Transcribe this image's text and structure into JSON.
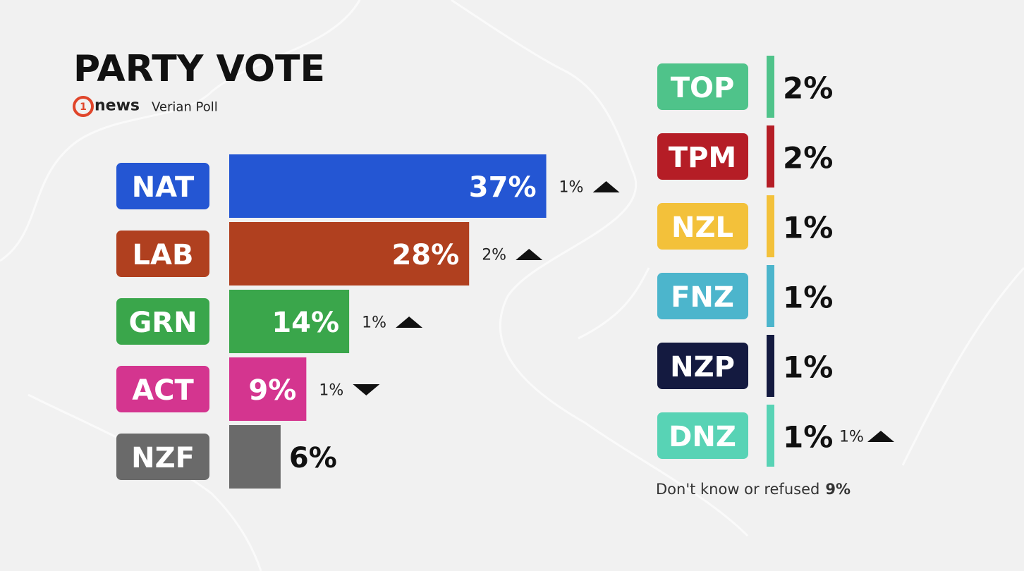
{
  "chart_data": [
    {
      "type": "bar",
      "orientation": "horizontal",
      "title": "PARTY VOTE",
      "logo_number": "1",
      "logo_text": "news",
      "subtitle": "Verian Poll",
      "categories": [
        "NAT",
        "LAB",
        "GRN",
        "ACT",
        "NZF"
      ],
      "values": [
        37,
        28,
        14,
        9,
        6
      ],
      "value_labels": [
        "37%",
        "28%",
        "14%",
        "9%",
        "6%"
      ],
      "colors": [
        "#2456d3",
        "#b0401f",
        "#3aa64b",
        "#d4358f",
        "#6a6a6a"
      ],
      "change": {
        "values": [
          1,
          2,
          1,
          1,
          null
        ],
        "value_labels": [
          "1%",
          "2%",
          "1%",
          "1%",
          null
        ],
        "direction": [
          "up",
          "up",
          "up",
          "down",
          null
        ]
      }
    },
    {
      "type": "list",
      "categories": [
        "TOP",
        "TPM",
        "NZL",
        "FNZ",
        "NZP",
        "DNZ"
      ],
      "values": [
        2,
        2,
        1,
        1,
        1,
        1
      ],
      "value_labels": [
        "2%",
        "2%",
        "1%",
        "1%",
        "1%",
        "1%"
      ],
      "colors": [
        "#4fc38a",
        "#b51d26",
        "#f3c13a",
        "#4cb5cc",
        "#141a40",
        "#58d3b5"
      ],
      "change": {
        "values": [
          null,
          null,
          null,
          null,
          null,
          1
        ],
        "value_labels": [
          null,
          null,
          null,
          null,
          null,
          "1%"
        ],
        "direction": [
          null,
          null,
          null,
          null,
          null,
          "up"
        ]
      },
      "note": "Don't know or refused",
      "note_value": 9,
      "note_value_label": "9%"
    }
  ]
}
